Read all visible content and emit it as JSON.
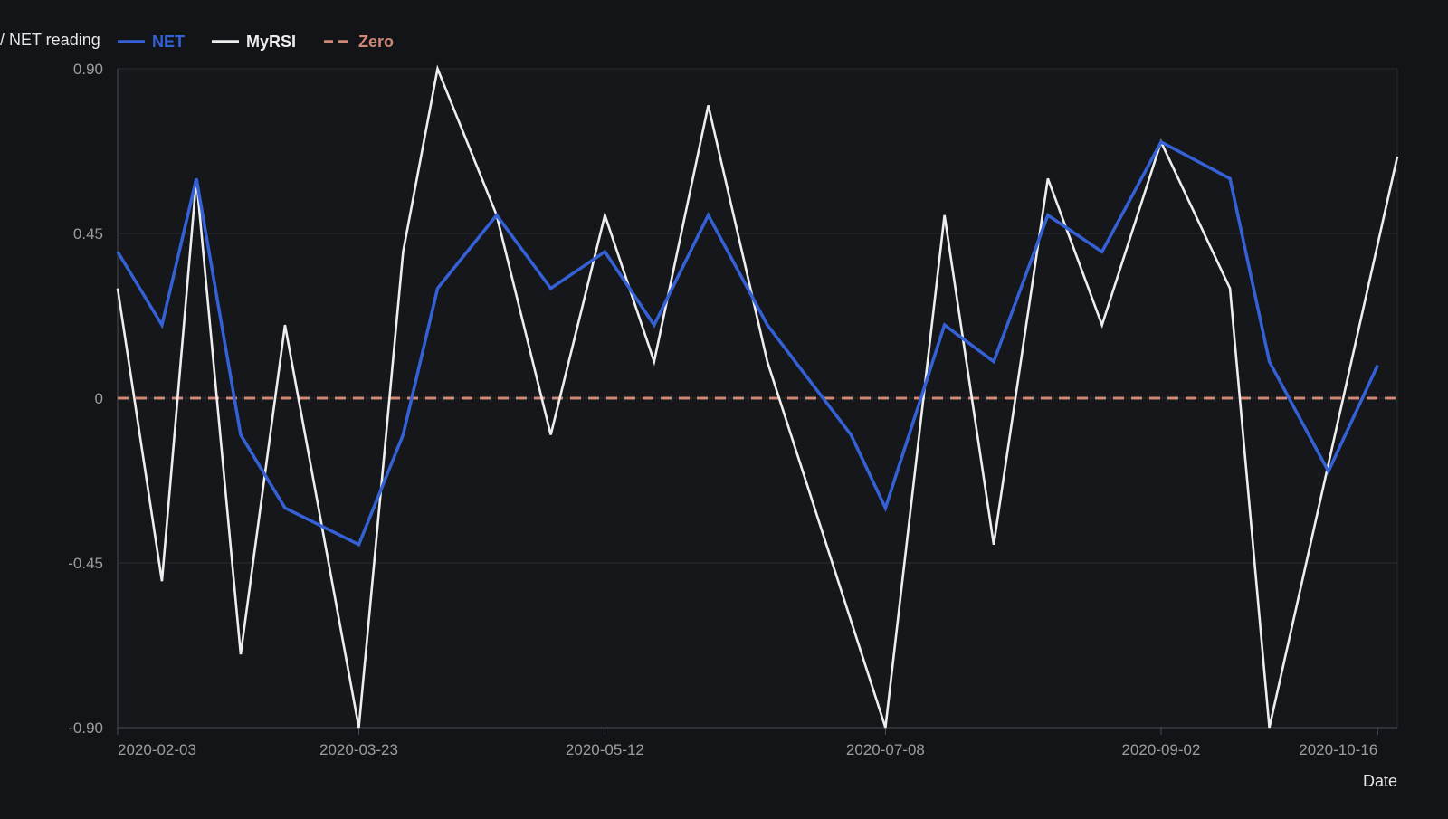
{
  "chart_data": {
    "type": "line",
    "title": "",
    "legend_title": "/ NET reading",
    "legend_position": "top-left",
    "xlabel": "Date",
    "ylabel": "",
    "ylim": [
      -0.9,
      0.9
    ],
    "xlim": [
      "2020-02-03",
      "2020-10-20"
    ],
    "y_ticks": [
      "0.90",
      "0.45",
      "0",
      "-0.45",
      "-0.90"
    ],
    "y_tick_values": [
      0.9,
      0.45,
      0,
      -0.45,
      -0.9
    ],
    "x_ticks": [
      "2020-02-03",
      "2020-03-23",
      "2020-05-12",
      "2020-07-08",
      "2020-09-02",
      "2020-10-16"
    ],
    "grid": true,
    "colors": {
      "background": "#131417",
      "plot_bg": "#16171b",
      "grid": "#2a2c31",
      "axis": "#4a4d53",
      "tick_text": "#9b9da1",
      "label_text": "#e6e6e6"
    },
    "series": [
      {
        "name": "NET",
        "color": "#3461d6",
        "style": "solid",
        "x": [
          "2020-02-03",
          "2020-02-12",
          "2020-02-19",
          "2020-02-28",
          "2020-03-08",
          "2020-03-23",
          "2020-04-01",
          "2020-04-08",
          "2020-04-20",
          "2020-05-01",
          "2020-05-12",
          "2020-05-22",
          "2020-06-02",
          "2020-06-14",
          "2020-07-01",
          "2020-07-08",
          "2020-07-20",
          "2020-07-30",
          "2020-08-10",
          "2020-08-21",
          "2020-09-02",
          "2020-09-16",
          "2020-09-24",
          "2020-10-06",
          "2020-10-16"
        ],
        "values": [
          0.4,
          0.2,
          0.6,
          -0.1,
          -0.3,
          -0.4,
          -0.1,
          0.3,
          0.5,
          0.3,
          0.4,
          0.2,
          0.5,
          0.2,
          -0.1,
          -0.3,
          0.2,
          0.1,
          0.5,
          0.4,
          0.7,
          0.6,
          0.1,
          -0.2,
          0.09
        ]
      },
      {
        "name": "MyRSI",
        "color": "#eeeeee",
        "style": "solid",
        "x": [
          "2020-02-03",
          "2020-02-12",
          "2020-02-19",
          "2020-02-28",
          "2020-03-08",
          "2020-03-23",
          "2020-04-01",
          "2020-04-08",
          "2020-04-20",
          "2020-05-01",
          "2020-05-12",
          "2020-05-22",
          "2020-06-02",
          "2020-06-14",
          "2020-07-08",
          "2020-07-20",
          "2020-07-30",
          "2020-08-10",
          "2020-08-21",
          "2020-09-02",
          "2020-09-16",
          "2020-09-24",
          "2020-10-20"
        ],
        "values": [
          0.3,
          -0.5,
          0.6,
          -0.7,
          0.2,
          -0.9,
          0.4,
          0.9,
          0.5,
          -0.1,
          0.5,
          0.1,
          0.8,
          0.1,
          -0.9,
          0.5,
          -0.4,
          0.6,
          0.2,
          0.7,
          0.3,
          -0.9,
          0.66
        ]
      },
      {
        "name": "Zero",
        "color": "#d08876",
        "style": "dashed",
        "x": [
          "2020-02-03",
          "2020-10-20"
        ],
        "values": [
          0,
          0
        ]
      }
    ]
  }
}
